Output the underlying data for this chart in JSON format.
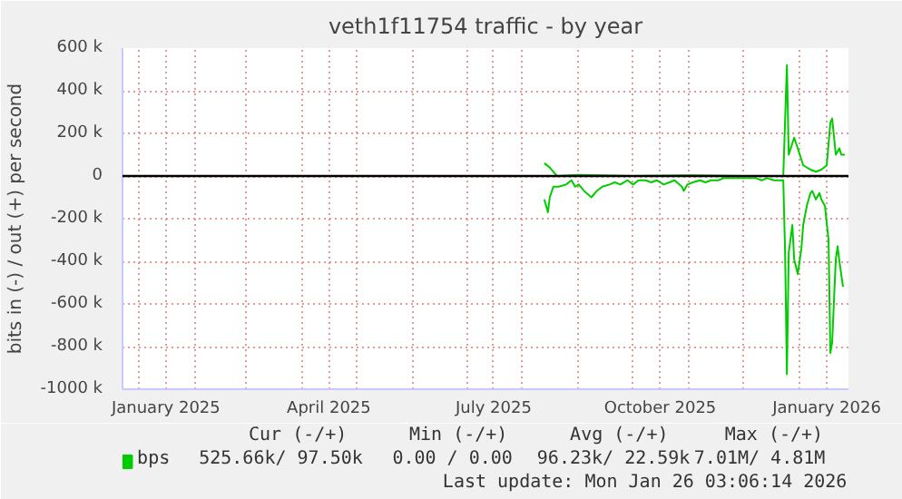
{
  "chart_data": {
    "type": "line",
    "title": "veth1f11754 traffic - by year",
    "ylabel": "bits in (-) / out (+) per second",
    "xlim": [
      "2024-12-23",
      "2026-01-28"
    ],
    "xticks": [
      {
        "value": "2025-01-01",
        "label": null
      },
      {
        "value": "2025-02-01",
        "label": null
      },
      {
        "value": "2025-03-01",
        "label": null
      },
      {
        "value": "2025-04-01",
        "label": null
      },
      {
        "value": "2025-05-01",
        "label": null
      },
      {
        "value": "2025-06-01",
        "label": null
      },
      {
        "value": "2025-07-01",
        "label": null
      },
      {
        "value": "2025-08-01",
        "label": null
      },
      {
        "value": "2025-09-01",
        "label": null
      },
      {
        "value": "2025-10-01",
        "label": null
      },
      {
        "value": "2025-11-01",
        "label": null
      },
      {
        "value": "2025-12-01",
        "label": null
      },
      {
        "value": "2026-01-01",
        "label": null
      },
      {
        "value": "2025-01-16",
        "label": "January 2025"
      },
      {
        "value": "2025-04-16",
        "label": "April 2025"
      },
      {
        "value": "2025-07-16",
        "label": "July 2025"
      },
      {
        "value": "2025-10-16",
        "label": "October 2025"
      },
      {
        "value": "2026-01-16",
        "label": "January 2026"
      }
    ],
    "ylim": [
      -1000000,
      600000
    ],
    "yticks": [
      {
        "value": -1000000,
        "label": "-1000 k"
      },
      {
        "value": -800000,
        "label": "-800 k"
      },
      {
        "value": -600000,
        "label": "-600 k"
      },
      {
        "value": -400000,
        "label": "-400 k"
      },
      {
        "value": -200000,
        "label": "-200 k"
      },
      0,
      {
        "value": 200000,
        "label": "200 k"
      },
      {
        "value": 400000,
        "label": "400 k"
      },
      {
        "value": 600000,
        "label": "600 k"
      }
    ],
    "grid": true,
    "legend": "bottom",
    "series": [
      {
        "name": "bps",
        "color": "#00cc00",
        "x": [
          "2025-08-13",
          "2025-08-16",
          "2025-08-20",
          "2025-09-01",
          "2025-10-01",
          "2025-11-01",
          "2025-12-01",
          "2025-12-23",
          "2025-12-25",
          "2025-12-26",
          "2025-12-29",
          "2025-12-31",
          "2026-01-03",
          "2026-01-07",
          "2026-01-10",
          "2026-01-13",
          "2026-01-16",
          "2026-01-18",
          "2026-01-19",
          "2026-01-21",
          "2026-01-23",
          "2026-01-24",
          "2026-01-26"
        ],
        "values": [
          60000,
          40000,
          0,
          5000,
          0,
          3000,
          0,
          0,
          520000,
          100000,
          180000,
          130000,
          50000,
          30000,
          20000,
          30000,
          50000,
          250000,
          270000,
          100000,
          130000,
          100000,
          100000
        ]
      },
      {
        "color": "#00cc00",
        "x": [
          "2025-08-13",
          "2025-08-15",
          "2025-08-16",
          "2025-08-18",
          "2025-08-21",
          "2025-08-25",
          "2025-08-28",
          "2025-08-30",
          "2025-09-01",
          "2025-09-04",
          "2025-09-08",
          "2025-09-11",
          "2025-09-14",
          "2025-09-18",
          "2025-09-21",
          "2025-09-24",
          "2025-09-28",
          "2025-10-01",
          "2025-10-04",
          "2025-10-08",
          "2025-10-11",
          "2025-10-14",
          "2025-10-18",
          "2025-10-21",
          "2025-10-24",
          "2025-10-28",
          "2025-10-29",
          "2025-10-31",
          "2025-11-03",
          "2025-11-07",
          "2025-11-10",
          "2025-11-13",
          "2025-11-17",
          "2025-11-20",
          "2025-11-23",
          "2025-11-27",
          "2025-12-01",
          "2025-12-04",
          "2025-12-08",
          "2025-12-11",
          "2025-12-14",
          "2025-12-18",
          "2025-12-23",
          "2025-12-24",
          "2025-12-25",
          "2025-12-26",
          "2025-12-28",
          "2025-12-29",
          "2025-12-31",
          "2026-01-02",
          "2026-01-03",
          "2026-01-05",
          "2026-01-07",
          "2026-01-08",
          "2026-01-10",
          "2026-01-12",
          "2026-01-13",
          "2026-01-15",
          "2026-01-17",
          "2026-01-18",
          "2026-01-19",
          "2026-01-21",
          "2026-01-22",
          "2026-01-23",
          "2026-01-25"
        ],
        "values": [
          -110000,
          -170000,
          -100000,
          -50000,
          -50000,
          -40000,
          -20000,
          -50000,
          -40000,
          -70000,
          -100000,
          -70000,
          -50000,
          -40000,
          -30000,
          -40000,
          -20000,
          -40000,
          -20000,
          -20000,
          -30000,
          -20000,
          -40000,
          -30000,
          -20000,
          -50000,
          -70000,
          -40000,
          -30000,
          -20000,
          -30000,
          -20000,
          -20000,
          -10000,
          -10000,
          -10000,
          -10000,
          -10000,
          -10000,
          -20000,
          -10000,
          -20000,
          -20000,
          -360000,
          -930000,
          -360000,
          -230000,
          -390000,
          -460000,
          -340000,
          -230000,
          -140000,
          -80000,
          -70000,
          -110000,
          -80000,
          -110000,
          -140000,
          -300000,
          -830000,
          -780000,
          -390000,
          -330000,
          -400000,
          -520000
        ]
      }
    ],
    "ref_lines": [
      {
        "axis": "y",
        "value": 0,
        "color": "#000000"
      }
    ],
    "annotations": [
      "Cur (-/+)",
      "Min (-/+)",
      "Avg (-/+)",
      "Max (-/+)",
      "525.66k/  97.50k",
      "0.00 /   0.00",
      "96.23k/  22.59k",
      "7.01M/   4.81M",
      "Last update: Mon Jan 26 03:06:14 2026"
    ]
  }
}
